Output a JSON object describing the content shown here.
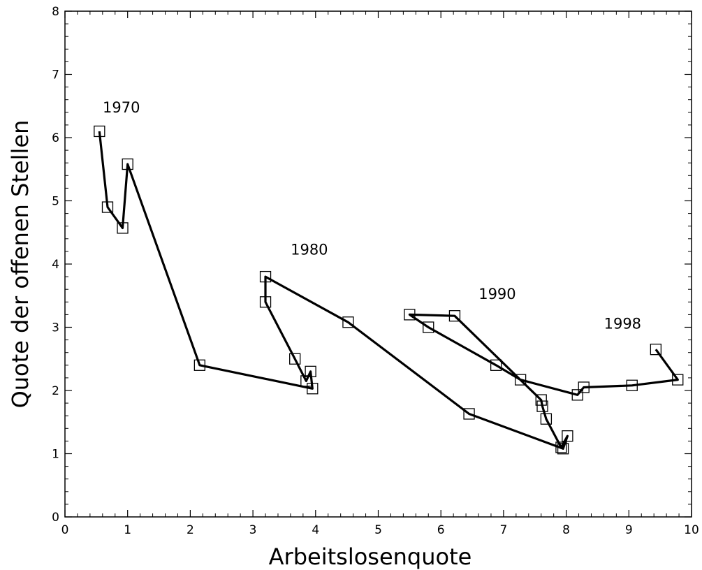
{
  "chart_data": {
    "type": "line",
    "title": "",
    "xlabel": "Arbeitslosenquote",
    "ylabel": "Quote der offenen Stellen",
    "xlim": [
      0,
      10
    ],
    "ylim": [
      0,
      8
    ],
    "x_ticks": [
      "0",
      "1",
      "2",
      "3",
      "4",
      "5",
      "6",
      "7",
      "8",
      "9",
      "10"
    ],
    "y_ticks": [
      "0",
      "1",
      "2",
      "3",
      "4",
      "5",
      "6",
      "7",
      "8"
    ],
    "grid": false,
    "marker": "square",
    "series": [
      {
        "points": [
          [
            0.55,
            6.1
          ],
          [
            0.68,
            4.9
          ],
          [
            0.92,
            4.57
          ],
          [
            1.0,
            5.58
          ],
          [
            2.15,
            2.4
          ],
          [
            3.95,
            2.03
          ],
          [
            3.92,
            2.3
          ],
          [
            3.85,
            2.15
          ],
          [
            3.67,
            2.5
          ],
          [
            3.2,
            3.4
          ],
          [
            3.2,
            3.8
          ],
          [
            4.52,
            3.08
          ],
          [
            6.45,
            1.63
          ],
          [
            7.95,
            1.08
          ],
          [
            8.02,
            1.28
          ],
          [
            7.92,
            1.1
          ],
          [
            7.68,
            1.55
          ],
          [
            7.62,
            1.75
          ],
          [
            7.6,
            1.85
          ],
          [
            6.22,
            3.18
          ],
          [
            5.5,
            3.2
          ],
          [
            5.8,
            3.0
          ],
          [
            6.88,
            2.4
          ],
          [
            7.27,
            2.17
          ],
          [
            8.18,
            1.93
          ],
          [
            8.28,
            2.05
          ],
          [
            9.05,
            2.08
          ],
          [
            9.78,
            2.17
          ],
          [
            9.43,
            2.65
          ]
        ]
      }
    ],
    "annotations": [
      {
        "text": "1970",
        "x": 0.9,
        "y": 6.4
      },
      {
        "text": "1980",
        "x": 3.9,
        "y": 4.15
      },
      {
        "text": "1990",
        "x": 6.9,
        "y": 3.45
      },
      {
        "text": "1998",
        "x": 8.9,
        "y": 2.98
      }
    ]
  }
}
